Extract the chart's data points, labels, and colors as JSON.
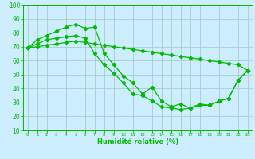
{
  "xlabel": "Humidité relative (%)",
  "bg_color": "#cceeff",
  "grid_color": "#aacccc",
  "line_color": "#00bb00",
  "xlim": [
    -0.5,
    23.5
  ],
  "ylim": [
    10,
    100
  ],
  "xticks": [
    0,
    1,
    2,
    3,
    4,
    5,
    6,
    7,
    8,
    9,
    10,
    11,
    12,
    13,
    14,
    15,
    16,
    17,
    18,
    19,
    20,
    21,
    22,
    23
  ],
  "yticks": [
    10,
    20,
    30,
    40,
    50,
    60,
    70,
    80,
    90,
    100
  ],
  "line1_x": [
    0,
    1,
    2,
    3,
    4,
    5,
    6,
    7,
    8,
    9,
    10,
    11,
    12,
    13,
    14,
    15,
    16,
    17,
    18,
    19,
    20,
    21,
    22,
    23
  ],
  "line1_y": [
    69,
    75,
    78,
    81,
    84,
    86,
    83,
    84,
    65,
    57,
    49,
    44,
    36,
    41,
    31,
    27,
    29,
    26,
    29,
    28,
    31,
    33,
    46,
    53
  ],
  "line2_x": [
    0,
    1,
    2,
    3,
    4,
    5,
    6,
    7,
    8,
    9,
    10,
    11,
    12,
    13,
    14,
    15,
    16,
    17,
    18,
    19,
    20,
    21,
    22,
    23
  ],
  "line2_y": [
    69,
    70,
    71,
    72,
    73,
    74,
    73,
    72,
    71,
    70,
    69,
    68,
    67,
    66,
    65,
    64,
    63,
    62,
    61,
    60,
    59,
    58,
    57,
    53
  ],
  "line3_x": [
    0,
    1,
    2,
    3,
    4,
    5,
    6,
    7,
    8,
    9,
    10,
    11,
    12,
    13,
    14,
    15,
    16,
    17,
    18,
    19,
    20,
    21,
    22,
    23
  ],
  "line3_y": [
    69,
    72,
    75,
    76,
    77,
    78,
    76,
    65,
    57,
    51,
    44,
    36,
    35,
    31,
    27,
    26,
    25,
    26,
    28,
    28,
    31,
    33,
    46,
    53
  ]
}
